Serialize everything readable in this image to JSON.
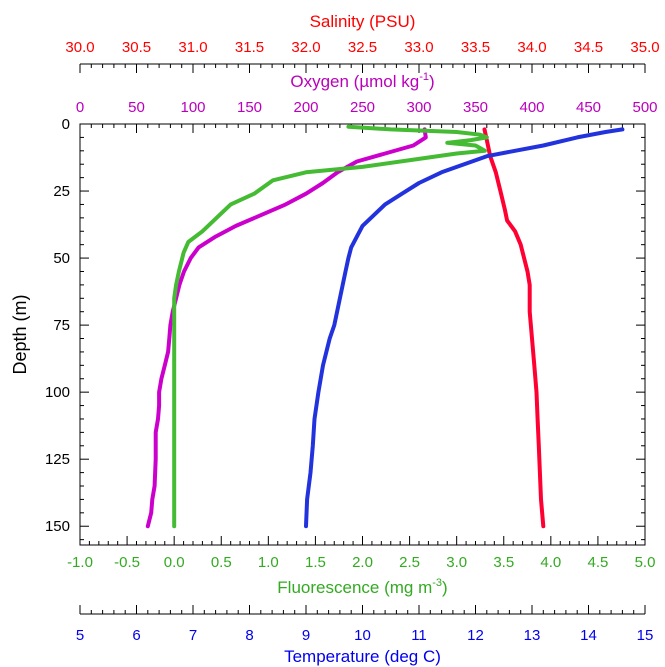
{
  "chart_data": {
    "type": "line",
    "y_axis": {
      "label": "Depth (m)",
      "range": [
        0,
        157
      ],
      "inverted": true,
      "ticks": [
        0,
        25,
        50,
        75,
        100,
        125,
        150
      ],
      "tick_labels": [
        "0",
        "25",
        "50",
        "75",
        "100",
        "125",
        "150"
      ]
    },
    "x_axes": [
      {
        "id": "salinity",
        "label": "Salinity (PSU)",
        "position": "top",
        "color": "#ff0000",
        "range": [
          30.0,
          35.0
        ],
        "ticks": [
          30.0,
          30.5,
          31.0,
          31.5,
          32.0,
          32.5,
          33.0,
          33.5,
          34.0,
          34.5,
          35.0
        ],
        "tick_labels": [
          "30.0",
          "30.5",
          "31.0",
          "31.5",
          "32.0",
          "32.5",
          "33.0",
          "33.5",
          "34.0",
          "34.5",
          "35.0"
        ]
      },
      {
        "id": "oxygen",
        "label": "Oxygen (µmol kg",
        "label_superscript": "-1",
        "label_suffix": ")",
        "position": "top-inner",
        "color": "#bb00bb",
        "range": [
          0,
          500
        ],
        "ticks": [
          0,
          50,
          100,
          150,
          200,
          250,
          300,
          350,
          400,
          450,
          500
        ],
        "tick_labels": [
          "0",
          "50",
          "100",
          "150",
          "200",
          "250",
          "300",
          "350",
          "400",
          "450",
          "500"
        ]
      },
      {
        "id": "fluorescence",
        "label": "Fluorescence (mg m",
        "label_superscript": "-3",
        "label_suffix": ")",
        "position": "bottom",
        "color": "#33aa22",
        "range": [
          -1.0,
          5.0
        ],
        "ticks": [
          -1.0,
          -0.5,
          0.0,
          0.5,
          1.0,
          1.5,
          2.0,
          2.5,
          3.0,
          3.5,
          4.0,
          4.5,
          5.0
        ],
        "tick_labels": [
          "-1.0",
          "-0.5",
          "0.0",
          "0.5",
          "1.0",
          "1.5",
          "2.0",
          "2.5",
          "3.0",
          "3.5",
          "4.0",
          "4.5",
          "5.0"
        ]
      },
      {
        "id": "temperature",
        "label": "Temperature (deg C)",
        "position": "bottom-outer",
        "color": "#0000ee",
        "range": [
          5,
          15
        ],
        "ticks": [
          5,
          6,
          7,
          8,
          9,
          10,
          11,
          12,
          13,
          14,
          15
        ],
        "tick_labels": [
          "5",
          "6",
          "7",
          "8",
          "9",
          "10",
          "11",
          "12",
          "13",
          "14",
          "15"
        ]
      }
    ],
    "series": [
      {
        "axis": "salinity",
        "color": "#ff0033",
        "points": [
          [
            33.58,
            2
          ],
          [
            33.6,
            6
          ],
          [
            33.63,
            12
          ],
          [
            33.68,
            18
          ],
          [
            33.72,
            25
          ],
          [
            33.76,
            32
          ],
          [
            33.78,
            36
          ],
          [
            33.85,
            40
          ],
          [
            33.9,
            45
          ],
          [
            33.93,
            50
          ],
          [
            33.96,
            55
          ],
          [
            33.98,
            60
          ],
          [
            33.98,
            70
          ],
          [
            34.0,
            80
          ],
          [
            34.02,
            90
          ],
          [
            34.04,
            100
          ],
          [
            34.05,
            110
          ],
          [
            34.06,
            120
          ],
          [
            34.07,
            130
          ],
          [
            34.08,
            140
          ],
          [
            34.1,
            150
          ]
        ]
      },
      {
        "axis": "oxygen",
        "color": "#cc00cc",
        "points": [
          [
            305,
            2
          ],
          [
            306,
            5
          ],
          [
            295,
            8
          ],
          [
            270,
            11
          ],
          [
            245,
            14
          ],
          [
            228,
            18
          ],
          [
            215,
            22
          ],
          [
            200,
            26
          ],
          [
            182,
            30
          ],
          [
            160,
            34
          ],
          [
            138,
            38
          ],
          [
            120,
            42
          ],
          [
            105,
            46
          ],
          [
            98,
            50
          ],
          [
            92,
            55
          ],
          [
            88,
            60
          ],
          [
            85,
            65
          ],
          [
            82,
            70
          ],
          [
            80,
            75
          ],
          [
            79,
            80
          ],
          [
            78,
            85
          ],
          [
            75,
            90
          ],
          [
            72,
            95
          ],
          [
            70,
            100
          ],
          [
            70,
            105
          ],
          [
            69,
            110
          ],
          [
            67,
            115
          ],
          [
            67,
            125
          ],
          [
            66,
            135
          ],
          [
            64,
            140
          ],
          [
            63,
            145
          ],
          [
            60,
            150
          ]
        ]
      },
      {
        "axis": "fluorescence",
        "color": "#44bb33",
        "points": [
          [
            1.85,
            1
          ],
          [
            2.3,
            2
          ],
          [
            3.0,
            3
          ],
          [
            3.25,
            4
          ],
          [
            3.32,
            5
          ],
          [
            3.15,
            6
          ],
          [
            2.9,
            7
          ],
          [
            3.2,
            8
          ],
          [
            3.3,
            10
          ],
          [
            3.0,
            11
          ],
          [
            2.6,
            13
          ],
          [
            2.0,
            16
          ],
          [
            1.4,
            18
          ],
          [
            1.05,
            21
          ],
          [
            0.85,
            26
          ],
          [
            0.6,
            30
          ],
          [
            0.45,
            35
          ],
          [
            0.3,
            40
          ],
          [
            0.15,
            44
          ],
          [
            0.1,
            48
          ],
          [
            0.05,
            55
          ],
          [
            0.02,
            60
          ],
          [
            0.0,
            65
          ],
          [
            0.0,
            80
          ],
          [
            0.0,
            100
          ],
          [
            0.0,
            125
          ],
          [
            0.0,
            150
          ]
        ]
      },
      {
        "axis": "temperature",
        "color": "#2233dd",
        "points": [
          [
            14.6,
            2
          ],
          [
            14.3,
            3
          ],
          [
            13.8,
            5
          ],
          [
            13.2,
            8
          ],
          [
            12.7,
            10
          ],
          [
            12.2,
            12
          ],
          [
            11.8,
            15
          ],
          [
            11.4,
            18
          ],
          [
            11.0,
            22
          ],
          [
            10.7,
            26
          ],
          [
            10.4,
            30
          ],
          [
            10.2,
            34
          ],
          [
            10.0,
            38
          ],
          [
            9.9,
            42
          ],
          [
            9.8,
            46
          ],
          [
            9.75,
            50
          ],
          [
            9.7,
            55
          ],
          [
            9.65,
            60
          ],
          [
            9.55,
            70
          ],
          [
            9.5,
            75
          ],
          [
            9.42,
            80
          ],
          [
            9.3,
            90
          ],
          [
            9.22,
            100
          ],
          [
            9.15,
            110
          ],
          [
            9.12,
            120
          ],
          [
            9.08,
            130
          ],
          [
            9.02,
            140
          ],
          [
            9.0,
            150
          ]
        ]
      }
    ]
  }
}
